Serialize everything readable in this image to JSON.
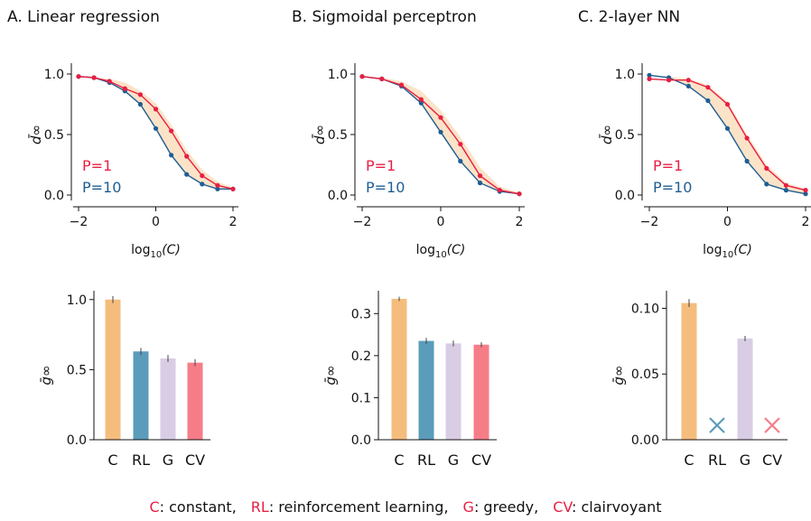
{
  "colors": {
    "p1": "#e81f42",
    "p10": "#1f5d93",
    "band": "#fbe3c8",
    "bar_C": "#f5bd7d",
    "bar_RL": "#5a9cba",
    "bar_G": "#d9cde5",
    "bar_CV": "#f67d88",
    "cross_RL": "#5a9cba",
    "cross_CV": "#f67d88",
    "errbar": "#444444",
    "axis": "#111111"
  },
  "legend": {
    "p1": "P=1",
    "p10": "P=10"
  },
  "line_ylabel": "d̄∞",
  "bar_ylabel": "ḡ∞",
  "line_xlabel": {
    "prefix": "log",
    "sub": "10",
    "arg": "(C)"
  },
  "footer": [
    {
      "key": "C",
      "text": ": constant,"
    },
    {
      "key": "RL",
      "text": ": reinforcement learning,"
    },
    {
      "key": "G",
      "text": ": greedy,"
    },
    {
      "key": "CV",
      "text": ": clairvoyant"
    }
  ],
  "chart_data": [
    {
      "type": "line",
      "panel": "A",
      "title": "A.  Linear regression",
      "x_scale": "log10(C)",
      "xlim": [
        -2,
        2
      ],
      "ylim": [
        0,
        1
      ],
      "xticks": [
        "−2",
        "0",
        "2"
      ],
      "yticks": [
        "0.0",
        "0.5",
        "1.0"
      ],
      "x": [
        -2.0,
        -1.6,
        -1.2,
        -0.8,
        -0.4,
        0.0,
        0.4,
        0.8,
        1.2,
        1.6,
        2.0
      ],
      "series": [
        {
          "name": "P=1",
          "values": [
            0.98,
            0.97,
            0.94,
            0.88,
            0.83,
            0.71,
            0.53,
            0.32,
            0.16,
            0.08,
            0.05
          ]
        },
        {
          "name": "P=10",
          "values": [
            0.98,
            0.97,
            0.93,
            0.86,
            0.75,
            0.55,
            0.33,
            0.17,
            0.09,
            0.05,
            0.05
          ]
        }
      ],
      "band_upper": [
        0.98,
        0.97,
        0.96,
        0.93,
        0.86,
        0.76,
        0.58,
        0.37,
        0.21,
        0.11,
        0.06
      ]
    },
    {
      "type": "line",
      "panel": "B",
      "title": "B.  Sigmoidal perceptron",
      "x_scale": "log10(C)",
      "xlim": [
        -2,
        2
      ],
      "ylim": [
        0,
        1
      ],
      "xticks": [
        "−2",
        "0",
        "2"
      ],
      "yticks": [
        "0.0",
        "0.5",
        "1.0"
      ],
      "x": [
        -2.0,
        -1.5,
        -1.0,
        -0.5,
        0.0,
        0.5,
        1.0,
        1.5,
        2.0
      ],
      "series": [
        {
          "name": "P=1",
          "values": [
            0.98,
            0.96,
            0.91,
            0.79,
            0.64,
            0.42,
            0.16,
            0.04,
            0.01
          ]
        },
        {
          "name": "P=10",
          "values": [
            0.98,
            0.96,
            0.9,
            0.76,
            0.52,
            0.28,
            0.1,
            0.03,
            0.01
          ]
        }
      ],
      "band_upper": [
        0.98,
        0.97,
        0.94,
        0.86,
        0.7,
        0.48,
        0.23,
        0.07,
        0.02
      ]
    },
    {
      "type": "line",
      "panel": "C",
      "title": "C.  2-layer NN",
      "x_scale": "log10(C)",
      "xlim": [
        -2,
        2
      ],
      "ylim": [
        0,
        1
      ],
      "xticks": [
        "−2",
        "0",
        "2"
      ],
      "yticks": [
        "0.0",
        "0.5",
        "1.0"
      ],
      "x": [
        -2.0,
        -1.5,
        -1.0,
        -0.5,
        0.0,
        0.5,
        1.0,
        1.5,
        2.0
      ],
      "series": [
        {
          "name": "P=1",
          "values": [
            0.96,
            0.95,
            0.95,
            0.89,
            0.75,
            0.47,
            0.22,
            0.08,
            0.04
          ]
        },
        {
          "name": "P=10",
          "values": [
            0.99,
            0.97,
            0.9,
            0.78,
            0.55,
            0.28,
            0.09,
            0.04,
            0.01
          ]
        }
      ],
      "band_upper": [
        0.99,
        0.98,
        0.96,
        0.91,
        0.77,
        0.5,
        0.25,
        0.1,
        0.05
      ]
    },
    {
      "type": "bar",
      "panel": "A",
      "categories": [
        "C",
        "RL",
        "G",
        "CV"
      ],
      "values": [
        1.0,
        0.63,
        0.58,
        0.55
      ],
      "errors": [
        0.025,
        0.025,
        0.025,
        0.025
      ],
      "ylim": [
        0,
        1.05
      ],
      "yticks": [
        0.0,
        0.5,
        1.0
      ],
      "ytick_labels": [
        "0.0",
        "0.5",
        "1.0"
      ],
      "missing": []
    },
    {
      "type": "bar",
      "panel": "B",
      "categories": [
        "C",
        "RL",
        "G",
        "CV"
      ],
      "values": [
        0.335,
        0.235,
        0.229,
        0.226
      ],
      "errors": [
        0.005,
        0.007,
        0.007,
        0.006
      ],
      "ylim": [
        0,
        0.35
      ],
      "yticks": [
        0.0,
        0.1,
        0.2,
        0.3
      ],
      "ytick_labels": [
        "0.0",
        "0.1",
        "0.2",
        "0.3"
      ],
      "missing": []
    },
    {
      "type": "bar",
      "panel": "C",
      "categories": [
        "C",
        "RL",
        "G",
        "CV"
      ],
      "values": [
        0.104,
        null,
        0.077,
        null
      ],
      "errors": [
        0.003,
        0,
        0.002,
        0
      ],
      "ylim": [
        0,
        0.112
      ],
      "yticks": [
        0.0,
        0.05,
        0.1
      ],
      "ytick_labels": [
        "0.00",
        "0.05",
        "0.10"
      ],
      "missing": [
        1,
        3
      ],
      "missing_marker": "×"
    }
  ]
}
